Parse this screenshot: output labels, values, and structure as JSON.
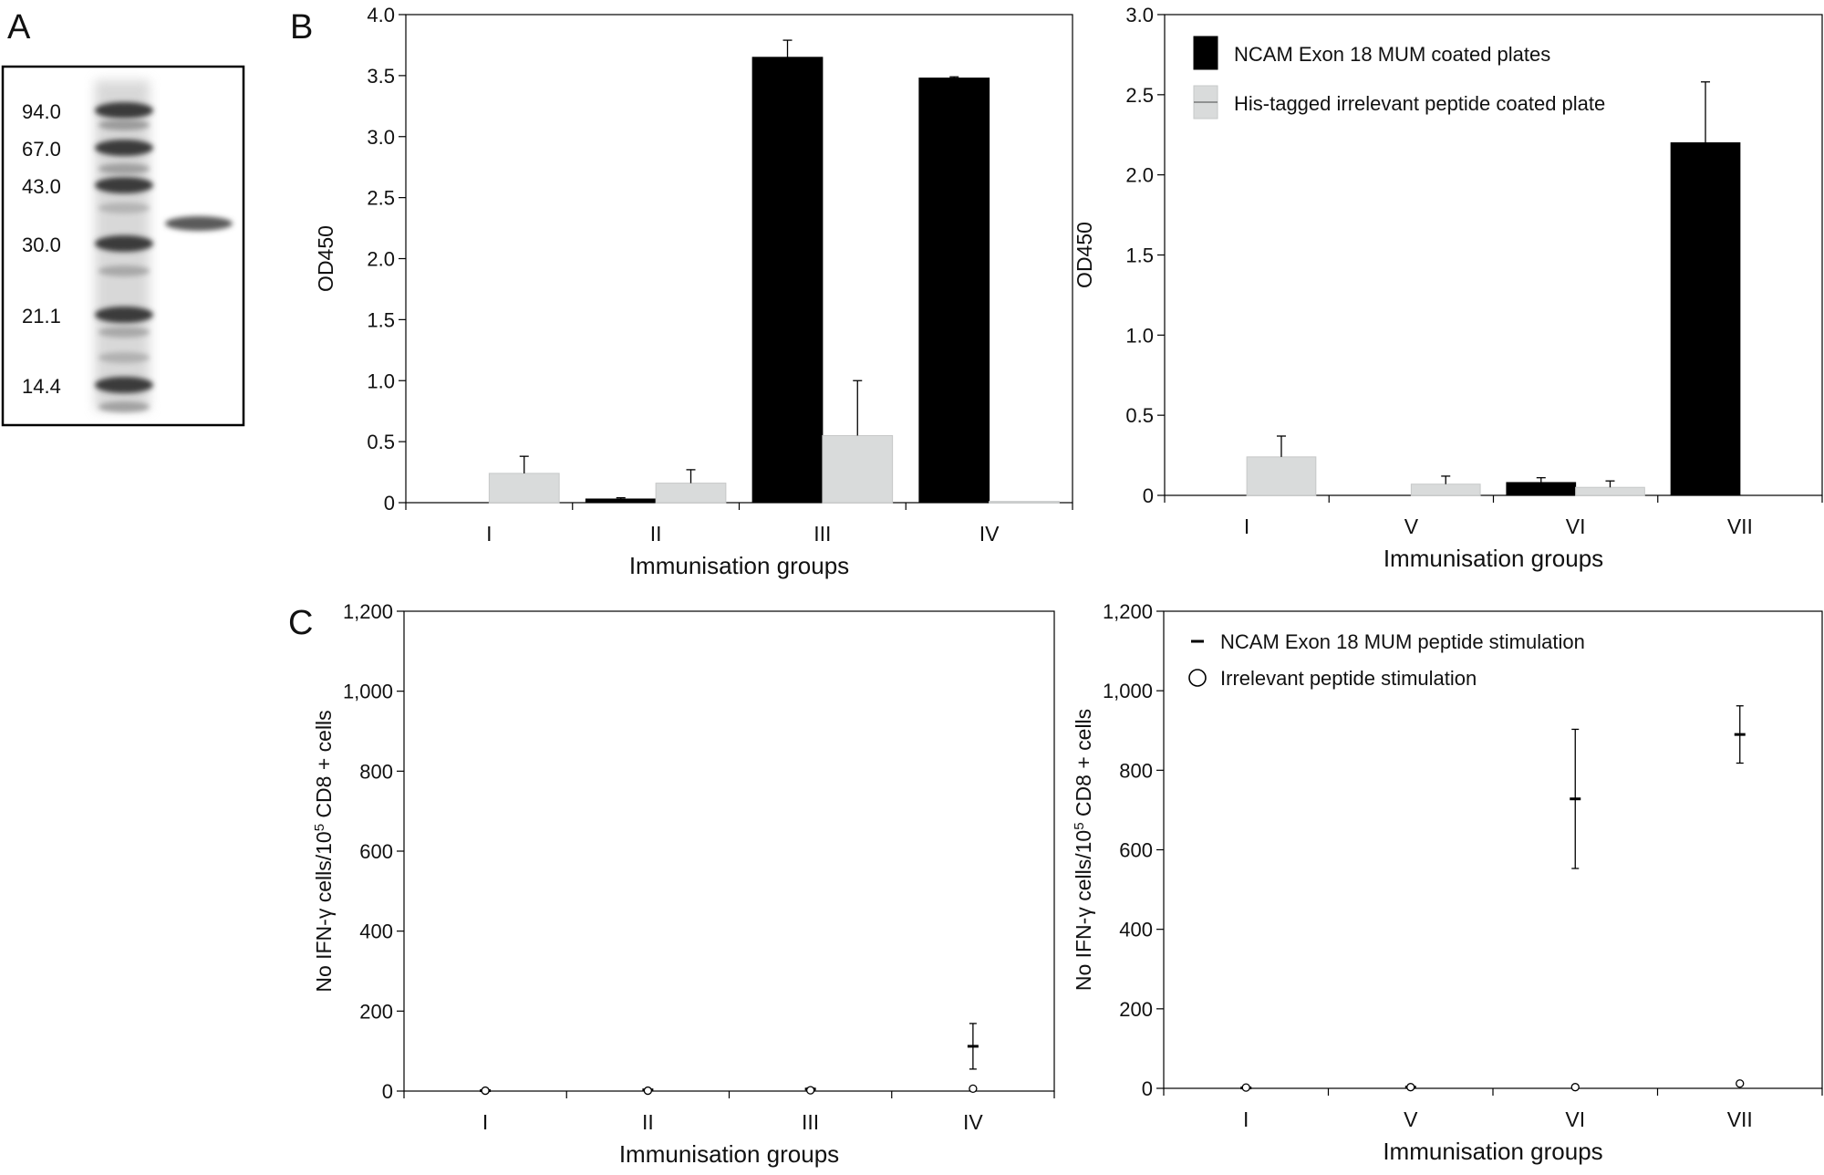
{
  "panel_letters": {
    "a": "A",
    "b": "B",
    "c": "C"
  },
  "gel": {
    "markers": [
      {
        "label": "94.0",
        "kda": 94.0
      },
      {
        "label": "67.0",
        "kda": 67.0
      },
      {
        "label": "43.0",
        "kda": 43.0
      },
      {
        "label": "30.0",
        "kda": 30.0
      },
      {
        "label": "21.1",
        "kda": 21.1
      },
      {
        "label": "14.4",
        "kda": 14.4
      }
    ]
  },
  "chart_data": [
    {
      "id": "b1",
      "type": "bar",
      "categories": [
        "I",
        "II",
        "III",
        "IV"
      ],
      "series": [
        {
          "name": "NCAM Exon 18 MUM coated plates",
          "color": "#000000",
          "values": [
            0,
            0.03,
            3.65,
            3.48
          ],
          "errors": [
            0,
            0.01,
            0.14,
            0.01
          ]
        },
        {
          "name": "His-tagged irrelevant peptide coated plate",
          "color": "#d9dbdb",
          "values": [
            0.24,
            0.16,
            0.55,
            0.01
          ],
          "errors": [
            0.14,
            0.11,
            0.45,
            0
          ]
        }
      ],
      "xlabel": "Immunisation groups",
      "ylabel": "OD450",
      "ylim": [
        0,
        4.0
      ],
      "yticks": [
        0,
        0.5,
        1.0,
        1.5,
        2.0,
        2.5,
        3.0,
        3.5,
        4.0
      ],
      "ytick_labels": [
        "0",
        "0.5",
        "1.0",
        "1.5",
        "2.0",
        "2.5",
        "3.0",
        "3.5",
        "4.0"
      ],
      "legend": false
    },
    {
      "id": "b2",
      "type": "bar",
      "categories": [
        "I",
        "V",
        "VI",
        "VII"
      ],
      "series": [
        {
          "name": "NCAM Exon 18 MUM coated plates",
          "color": "#000000",
          "values": [
            0,
            0,
            0.08,
            2.2
          ],
          "errors": [
            0,
            0,
            0.03,
            0.38
          ]
        },
        {
          "name": "His-tagged irrelevant peptide coated plate",
          "color": "#d9dbdb",
          "values": [
            0.24,
            0.07,
            0.05,
            0
          ],
          "errors": [
            0.13,
            0.05,
            0.04,
            0
          ]
        }
      ],
      "xlabel": "Immunisation groups",
      "ylabel": "OD450",
      "ylim": [
        0,
        3.0
      ],
      "yticks": [
        0,
        0.5,
        1.0,
        1.5,
        2.0,
        2.5,
        3.0
      ],
      "ytick_labels": [
        "0",
        "0.5",
        "1.0",
        "1.5",
        "2.0",
        "2.5",
        "3.0"
      ],
      "legend": true,
      "legend_position": "top-left"
    },
    {
      "id": "c1",
      "type": "scatter",
      "categories": [
        "I",
        "II",
        "III",
        "IV"
      ],
      "series": [
        {
          "name": "NCAM Exon 18 MUM peptide stimulation",
          "marker": "dash",
          "values": [
            1,
            3,
            5,
            112
          ],
          "errors": [
            1,
            2,
            3,
            57
          ]
        },
        {
          "name": "Irrelevant peptide stimulation",
          "marker": "circle",
          "values": [
            1,
            1,
            2,
            6
          ],
          "errors": [
            0,
            1,
            1,
            3
          ]
        }
      ],
      "xlabel": "Immunisation groups",
      "ylabel_parts": [
        "No IFN-",
        "γ",
        " cells/10",
        "5",
        " CD8 + cells"
      ],
      "ylim": [
        0,
        1200
      ],
      "yticks": [
        0,
        200,
        400,
        600,
        800,
        1000,
        1200
      ],
      "ytick_labels": [
        "0",
        "200",
        "400",
        "600",
        "800",
        "1,000",
        "1,200"
      ],
      "legend": false
    },
    {
      "id": "c2",
      "type": "scatter",
      "categories": [
        "I",
        "V",
        "VI",
        "VII"
      ],
      "series": [
        {
          "name": "NCAM Exon 18 MUM peptide stimulation",
          "marker": "dash",
          "values": [
            1,
            3,
            728,
            890
          ],
          "errors": [
            1,
            2,
            175,
            72
          ]
        },
        {
          "name": "Irrelevant peptide stimulation",
          "marker": "circle",
          "values": [
            2,
            3,
            3,
            12
          ],
          "errors": [
            1,
            1,
            1,
            3
          ]
        }
      ],
      "xlabel": "Immunisation groups",
      "ylabel_parts": [
        "No IFN-",
        "γ",
        " cells/10",
        "5",
        " CD8 + cells"
      ],
      "ylim": [
        0,
        1200
      ],
      "yticks": [
        0,
        200,
        400,
        600,
        800,
        1000,
        1200
      ],
      "ytick_labels": [
        "0",
        "200",
        "400",
        "600",
        "800",
        "1,000",
        "1,200"
      ],
      "legend": true,
      "legend_position": "top-left"
    }
  ]
}
